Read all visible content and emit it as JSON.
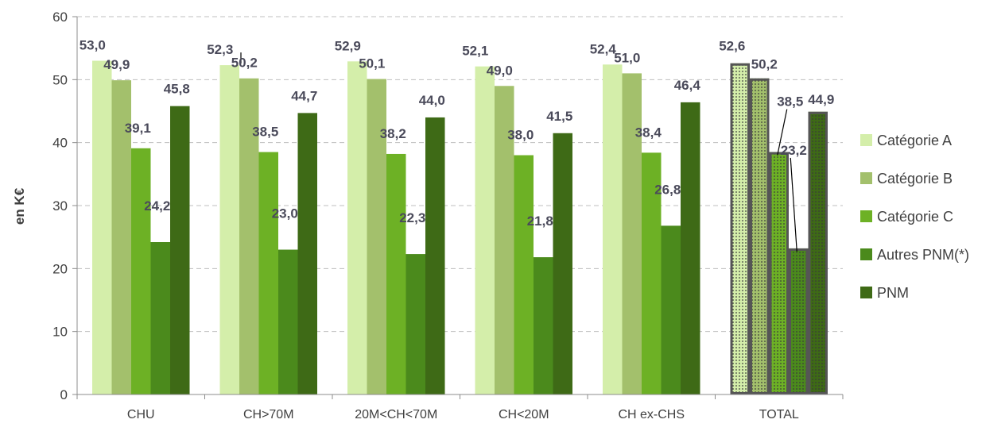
{
  "chart_data": {
    "type": "bar",
    "title": "",
    "xlabel": "",
    "ylabel": "en K€",
    "ylim": [
      0,
      60
    ],
    "yticks": [
      0,
      10,
      20,
      30,
      40,
      50,
      60
    ],
    "grid": true,
    "legend_position": "right",
    "categories": [
      "CHU",
      "CH>70M",
      "20M<CH<70M",
      "CH<20M",
      "CH ex-CHS",
      "TOTAL"
    ],
    "series": [
      {
        "name": "Catégorie A",
        "color": "#d4eeaa",
        "values": [
          53.0,
          52.3,
          52.9,
          52.1,
          52.4,
          52.6
        ],
        "labels": [
          "53,0",
          "52,3",
          "52,9",
          "52,1",
          "52,4",
          "52,6"
        ]
      },
      {
        "name": "Catégorie B",
        "color": "#a3c06c",
        "values": [
          49.9,
          50.2,
          50.1,
          49.0,
          51.0,
          50.2
        ],
        "labels": [
          "49,9",
          "50,2",
          "50,1",
          "49,0",
          "51,0",
          "50,2"
        ]
      },
      {
        "name": "Catégorie C",
        "color": "#6db125",
        "values": [
          39.1,
          38.5,
          38.2,
          38.0,
          38.4,
          38.5
        ],
        "labels": [
          "39,1",
          "38,5",
          "38,2",
          "38,0",
          "38,4",
          "38,5"
        ]
      },
      {
        "name": "Autres PNM(*)",
        "color": "#4b8a1c",
        "values": [
          24.2,
          23.0,
          22.3,
          21.8,
          26.8,
          23.2
        ],
        "labels": [
          "24,2",
          "23,0",
          "22,3",
          "21,8",
          "26,8",
          "23,2"
        ]
      },
      {
        "name": "PNM",
        "color": "#3e6a16",
        "values": [
          45.8,
          44.7,
          44.0,
          41.5,
          46.4,
          44.9
        ],
        "labels": [
          "45,8",
          "44,7",
          "44,0",
          "41,5",
          "46,4",
          "44,9"
        ]
      }
    ],
    "highlighted_category": "TOTAL"
  }
}
